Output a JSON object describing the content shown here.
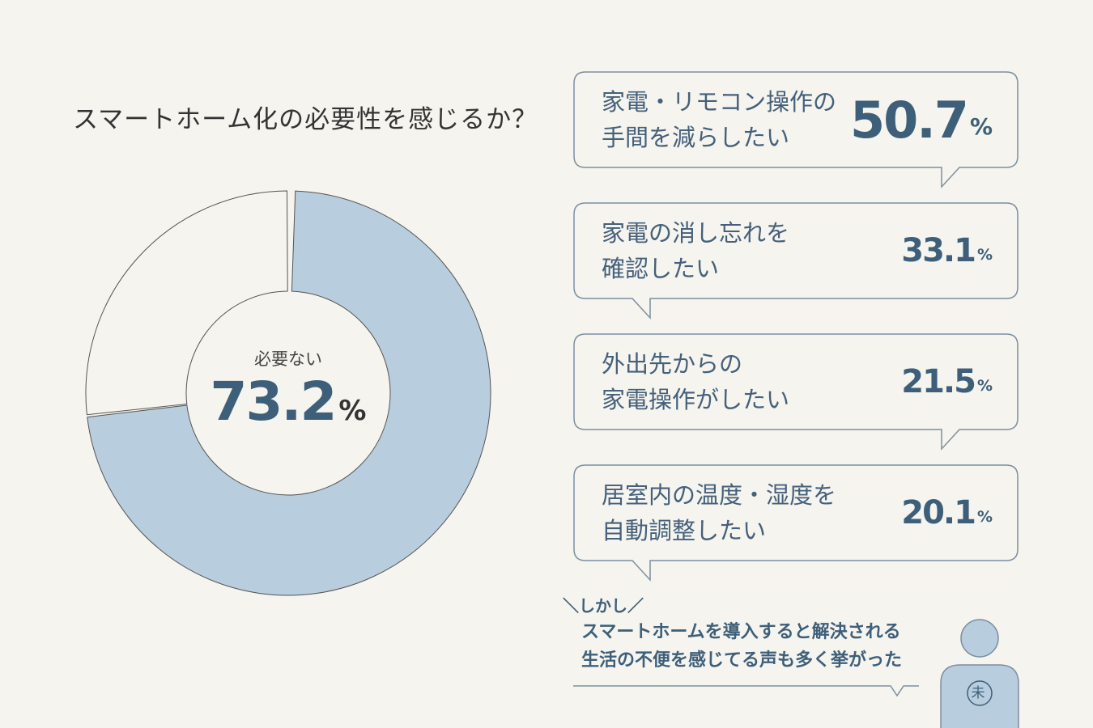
{
  "title": "スマートホーム化の必要性を感じるか？",
  "chart_data": {
    "type": "pie",
    "donut": true,
    "slices": [
      {
        "label": "必要ない",
        "value": 73.2,
        "color": "#b8cddd"
      },
      {
        "label": "",
        "value": 26.8,
        "color": "#f5f4ee"
      }
    ],
    "center_label": "必要ない",
    "center_value": "73.2",
    "center_unit": "%"
  },
  "reasons": [
    {
      "text": "家電・リモコン操作の\n手間を減らしたい",
      "value": "50.7",
      "unit": "%"
    },
    {
      "text": "家電の消し忘れを\n確認したい",
      "value": "33.1",
      "unit": "%"
    },
    {
      "text": "外出先からの\n家電操作がしたい",
      "value": "21.5",
      "unit": "%"
    },
    {
      "text": "居室内の温度・湿度を\n自動調整したい",
      "value": "20.1",
      "unit": "%"
    }
  ],
  "however": "＼しかし／",
  "comment": "スマートホームを導入すると解決される\n生活の不便を感じてる声も多く挙がった",
  "person_badge": "未",
  "colors": {
    "accent": "#3e5f79",
    "slice": "#b8cddd",
    "background": "#f5f4ee",
    "border": "#7d8fa0"
  }
}
